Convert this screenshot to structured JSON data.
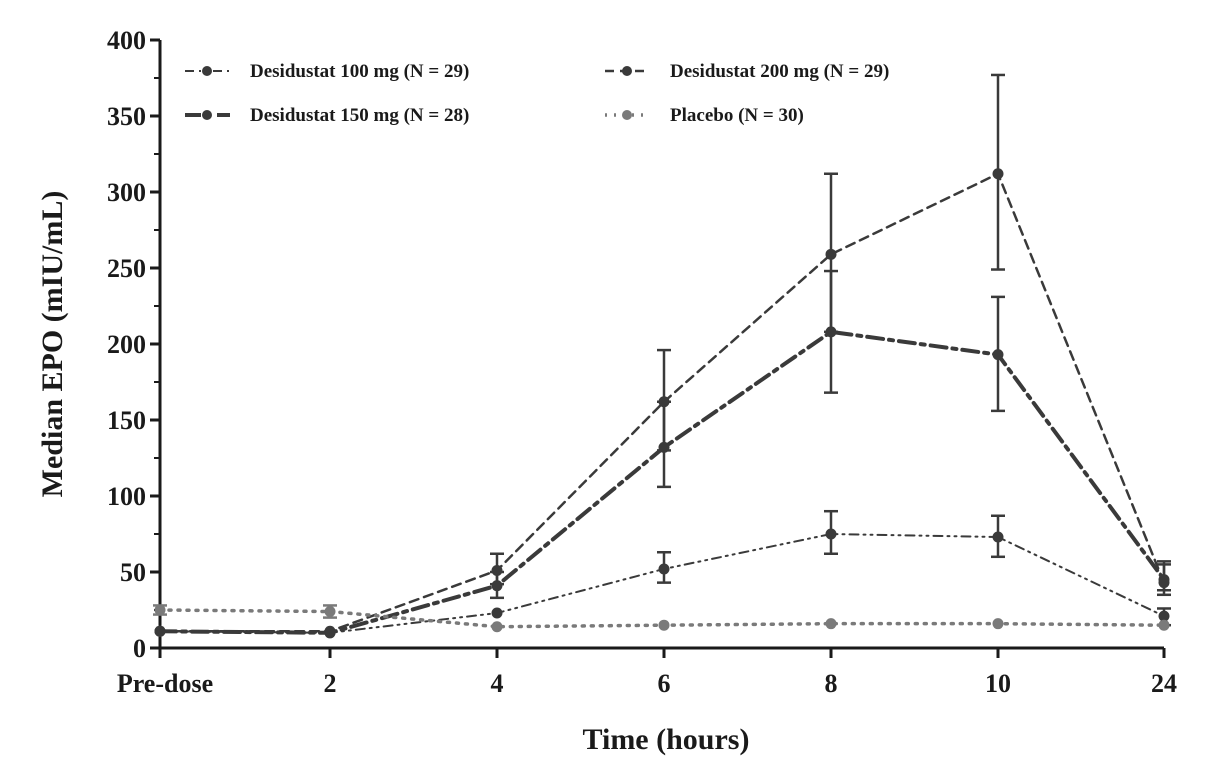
{
  "chart_data": {
    "type": "line",
    "xlabel": "Time (hours)",
    "ylabel": "Median EPO (mIU/mL)",
    "categories": [
      "Pre-dose",
      "2",
      "4",
      "6",
      "8",
      "10",
      "24"
    ],
    "yticks": [
      "0",
      "50",
      "100",
      "150",
      "200",
      "250",
      "300",
      "350",
      "400"
    ],
    "ylim": [
      0,
      400
    ],
    "grid": false,
    "legend_position": "top-left",
    "series": [
      {
        "name": "Desidustat 100 mg (N = 29)",
        "values": [
          11,
          10,
          23,
          52,
          75,
          73,
          21
        ],
        "error_low": [
          null,
          null,
          null,
          43,
          62,
          60,
          15
        ],
        "error_high": [
          null,
          null,
          null,
          63,
          90,
          87,
          26
        ],
        "color": "#3a3a3a",
        "dash": "dash-dot-dot"
      },
      {
        "name": "Desidustat 150 mg (N = 28)",
        "values": [
          11,
          10,
          41,
          132,
          208,
          193,
          45
        ],
        "error_low": [
          null,
          null,
          33,
          106,
          168,
          156,
          38
        ],
        "error_high": [
          null,
          null,
          50,
          162,
          248,
          231,
          55
        ],
        "color": "#3a3a3a",
        "dash": "long-dash-dot"
      },
      {
        "name": "Desidustat 200 mg (N = 29)",
        "values": [
          11,
          11,
          51,
          162,
          259,
          312,
          43
        ],
        "error_low": [
          null,
          null,
          42,
          130,
          208,
          249,
          35
        ],
        "error_high": [
          null,
          null,
          62,
          196,
          312,
          377,
          57
        ],
        "color": "#3a3a3a",
        "dash": "dash"
      },
      {
        "name": "Placebo (N = 30)",
        "values": [
          25,
          24,
          14,
          15,
          16,
          16,
          15
        ],
        "error_low": [
          22,
          20,
          null,
          null,
          null,
          null,
          null
        ],
        "error_high": [
          28,
          28,
          null,
          null,
          null,
          null,
          null
        ],
        "color": "#7a7a7a",
        "dash": "dot"
      }
    ]
  }
}
